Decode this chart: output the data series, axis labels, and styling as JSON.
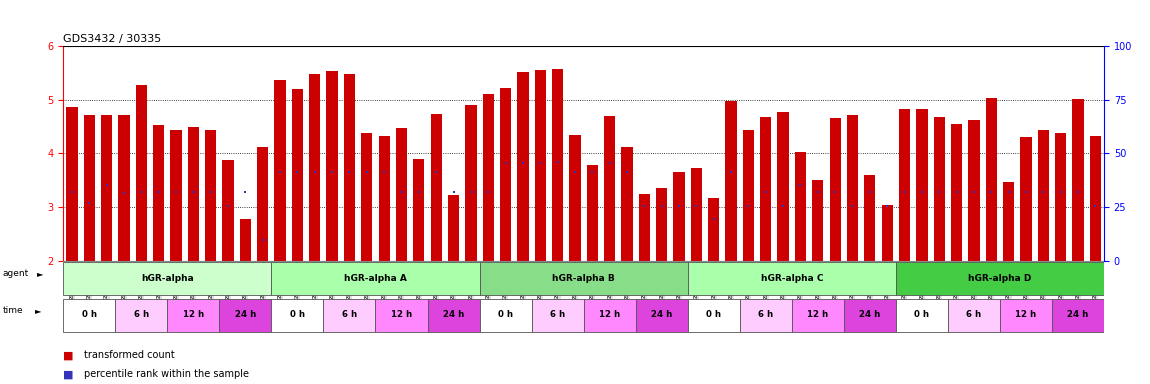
{
  "title": "GDS3432 / 30335",
  "ylim": [
    2,
    6
  ],
  "yticks": [
    2,
    3,
    4,
    5,
    6
  ],
  "right_yticks": [
    0,
    25,
    50,
    75,
    100
  ],
  "bar_color": "#cc0000",
  "dot_color": "#3333bb",
  "samples": [
    {
      "name": "GSM154259",
      "bar": 4.87,
      "dot": 3.27
    },
    {
      "name": "GSM154260",
      "bar": 4.71,
      "dot": 3.07
    },
    {
      "name": "GSM154261",
      "bar": 4.71,
      "dot": 3.4
    },
    {
      "name": "GSM154274",
      "bar": 4.71,
      "dot": 3.26
    },
    {
      "name": "GSM154275",
      "bar": 5.28,
      "dot": 3.27
    },
    {
      "name": "GSM154276",
      "bar": 4.53,
      "dot": 3.27
    },
    {
      "name": "GSM154289",
      "bar": 4.43,
      "dot": 3.27
    },
    {
      "name": "GSM154290",
      "bar": 4.5,
      "dot": 3.27
    },
    {
      "name": "GSM154291",
      "bar": 4.44,
      "dot": 3.27
    },
    {
      "name": "GSM154304",
      "bar": 3.88,
      "dot": 3.02
    },
    {
      "name": "GSM154305",
      "bar": 2.78,
      "dot": 3.27
    },
    {
      "name": "GSM154306",
      "bar": 4.12,
      "dot": 2.38
    },
    {
      "name": "GSM154262",
      "bar": 5.37,
      "dot": 3.65
    },
    {
      "name": "GSM154263",
      "bar": 5.2,
      "dot": 3.65
    },
    {
      "name": "GSM154264",
      "bar": 5.47,
      "dot": 3.65
    },
    {
      "name": "GSM154277",
      "bar": 5.53,
      "dot": 3.65
    },
    {
      "name": "GSM154278",
      "bar": 5.47,
      "dot": 3.65
    },
    {
      "name": "GSM154279",
      "bar": 4.37,
      "dot": 3.65
    },
    {
      "name": "GSM154292",
      "bar": 4.32,
      "dot": 3.65
    },
    {
      "name": "GSM154293",
      "bar": 4.47,
      "dot": 3.27
    },
    {
      "name": "GSM154294",
      "bar": 3.9,
      "dot": 3.27
    },
    {
      "name": "GSM154307",
      "bar": 4.73,
      "dot": 3.65
    },
    {
      "name": "GSM154308",
      "bar": 3.23,
      "dot": 3.27
    },
    {
      "name": "GSM154309",
      "bar": 4.9,
      "dot": 3.27
    },
    {
      "name": "GSM154265",
      "bar": 5.1,
      "dot": 3.27
    },
    {
      "name": "GSM154266",
      "bar": 5.22,
      "dot": 3.82
    },
    {
      "name": "GSM154267",
      "bar": 5.52,
      "dot": 3.82
    },
    {
      "name": "GSM154280",
      "bar": 5.55,
      "dot": 3.82
    },
    {
      "name": "GSM154281",
      "bar": 5.57,
      "dot": 3.84
    },
    {
      "name": "GSM154282",
      "bar": 4.34,
      "dot": 3.65
    },
    {
      "name": "GSM154295",
      "bar": 3.78,
      "dot": 3.65
    },
    {
      "name": "GSM154296",
      "bar": 4.7,
      "dot": 3.82
    },
    {
      "name": "GSM154297",
      "bar": 4.12,
      "dot": 3.65
    },
    {
      "name": "GSM154310",
      "bar": 3.25,
      "dot": 3.02
    },
    {
      "name": "GSM154311",
      "bar": 3.35,
      "dot": 3.02
    },
    {
      "name": "GSM154312",
      "bar": 3.65,
      "dot": 3.02
    },
    {
      "name": "GSM154268",
      "bar": 3.73,
      "dot": 3.02
    },
    {
      "name": "GSM154269",
      "bar": 3.17,
      "dot": 2.78
    },
    {
      "name": "GSM154270",
      "bar": 4.97,
      "dot": 3.65
    },
    {
      "name": "GSM154283",
      "bar": 4.43,
      "dot": 3.02
    },
    {
      "name": "GSM154284",
      "bar": 4.67,
      "dot": 3.27
    },
    {
      "name": "GSM154285",
      "bar": 4.77,
      "dot": 3.02
    },
    {
      "name": "GSM154298",
      "bar": 4.03,
      "dot": 3.4
    },
    {
      "name": "GSM154299",
      "bar": 3.5,
      "dot": 3.27
    },
    {
      "name": "GSM154300",
      "bar": 4.65,
      "dot": 3.27
    },
    {
      "name": "GSM154313",
      "bar": 4.72,
      "dot": 3.02
    },
    {
      "name": "GSM154314",
      "bar": 3.6,
      "dot": 3.27
    },
    {
      "name": "GSM154315",
      "bar": 3.03,
      "dot": 3.02
    },
    {
      "name": "GSM154271",
      "bar": 4.83,
      "dot": 3.27
    },
    {
      "name": "GSM154272",
      "bar": 4.82,
      "dot": 3.27
    },
    {
      "name": "GSM154273",
      "bar": 4.67,
      "dot": 3.27
    },
    {
      "name": "GSM154286",
      "bar": 4.55,
      "dot": 3.27
    },
    {
      "name": "GSM154287",
      "bar": 4.63,
      "dot": 3.27
    },
    {
      "name": "GSM154288",
      "bar": 5.03,
      "dot": 3.27
    },
    {
      "name": "GSM154301",
      "bar": 3.47,
      "dot": 3.27
    },
    {
      "name": "GSM154302",
      "bar": 4.3,
      "dot": 3.27
    },
    {
      "name": "GSM154303",
      "bar": 4.43,
      "dot": 3.27
    },
    {
      "name": "GSM154316",
      "bar": 4.37,
      "dot": 3.27
    },
    {
      "name": "GSM154317",
      "bar": 5.02,
      "dot": 3.27
    },
    {
      "name": "GSM154318",
      "bar": 4.33,
      "dot": 3.02
    }
  ],
  "groups": [
    {
      "label": "hGR-alpha",
      "start": 0,
      "end": 11,
      "color": "#ccffcc"
    },
    {
      "label": "hGR-alpha A",
      "start": 12,
      "end": 23,
      "color": "#aaffaa"
    },
    {
      "label": "hGR-alpha B",
      "start": 24,
      "end": 35,
      "color": "#88dd88"
    },
    {
      "label": "hGR-alpha C",
      "start": 36,
      "end": 47,
      "color": "#aaffaa"
    },
    {
      "label": "hGR-alpha D",
      "start": 48,
      "end": 59,
      "color": "#44cc44"
    }
  ],
  "time_colors": [
    "#ffffff",
    "#ffccff",
    "#ff88ff",
    "#dd44dd"
  ],
  "time_labels": [
    "0 h",
    "6 h",
    "12 h",
    "24 h"
  ],
  "legend_bar_color": "#cc0000",
  "legend_dot_color": "#3333bb",
  "legend_bar_label": "transformed count",
  "legend_dot_label": "percentile rank within the sample"
}
